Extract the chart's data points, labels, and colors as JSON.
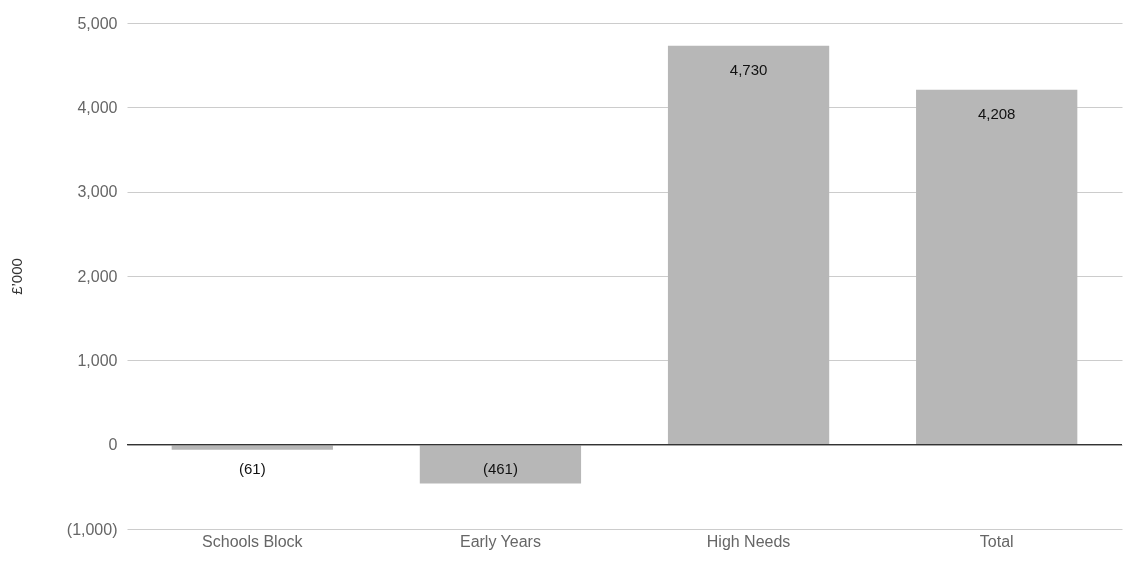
{
  "chart_data": {
    "type": "bar",
    "ylabel": "£’000",
    "categories": [
      "Schools Block",
      "Early Years",
      "High Needs",
      "Total"
    ],
    "values": [
      -61,
      -461,
      4730,
      4208
    ],
    "value_labels": [
      "(61)",
      "(461)",
      "4,730",
      "4,208"
    ],
    "color": "#b7b7b7",
    "ylim": [
      -1000,
      5000
    ],
    "yticks": [
      {
        "value": -1000,
        "label": "(1,000)"
      },
      0,
      {
        "value": 1000,
        "label": "1,000"
      },
      {
        "value": 2000,
        "label": "2,000"
      },
      {
        "value": 3000,
        "label": "3,000"
      },
      {
        "value": 4000,
        "label": "4,000"
      },
      {
        "value": 5000,
        "label": "5,000"
      }
    ],
    "ref_lines": [
      {
        "axis": "y",
        "value": 0,
        "color": "#333333"
      }
    ],
    "grid": "y",
    "legend": false
  }
}
